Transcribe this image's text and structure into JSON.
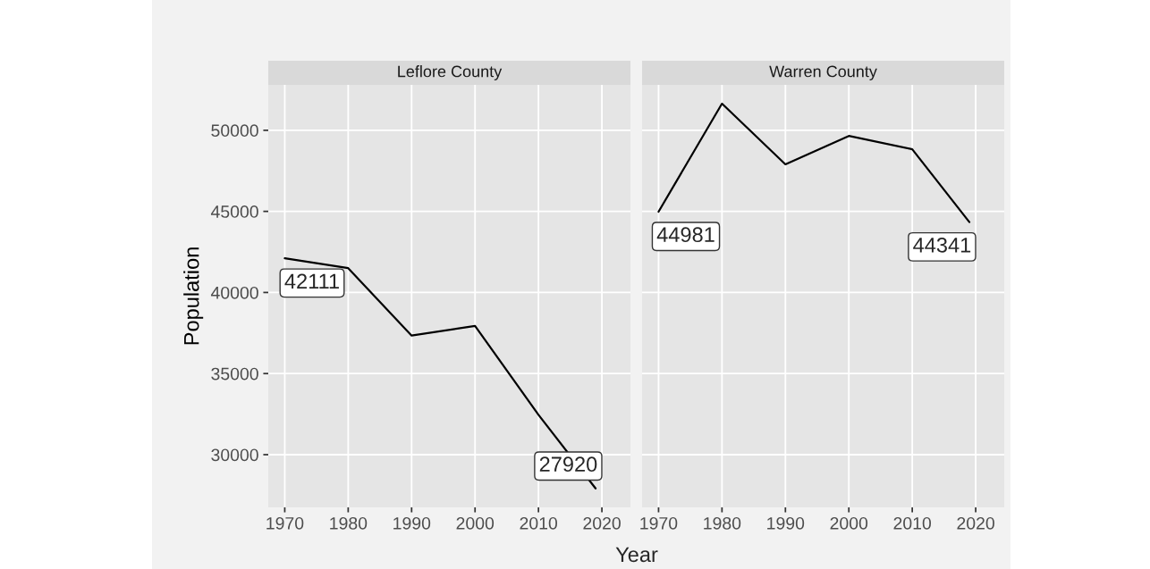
{
  "chart_data": [
    {
      "type": "line",
      "title": "Leflore County",
      "xlabel": "Year",
      "ylabel": "Population",
      "x": [
        1970,
        1980,
        1990,
        2000,
        2010,
        2019
      ],
      "series": [
        {
          "color": "#000000",
          "values": [
            42111,
            41500,
            37340,
            37940,
            32460,
            27920
          ],
          "value_labels": [
            "42111",
            null,
            null,
            null,
            null,
            "27920"
          ]
        }
      ],
      "xlim": [
        1967.4,
        2024.5
      ],
      "xticks": [
        1970,
        1980,
        1990,
        2000,
        2010,
        2020
      ],
      "ylim": [
        26750,
        52800
      ],
      "yticks": [
        30000,
        35000,
        40000,
        45000,
        50000
      ],
      "grid": true,
      "marker": "none"
    },
    {
      "type": "line",
      "title": "Warren County",
      "x": [
        1970,
        1980,
        1990,
        2000,
        2010,
        2019
      ],
      "series": [
        {
          "color": "#000000",
          "values": [
            44981,
            51640,
            47900,
            49650,
            48830,
            44341
          ],
          "value_labels": [
            "44981",
            null,
            null,
            null,
            null,
            "44341"
          ]
        }
      ],
      "xlim": [
        1967.4,
        2024.5
      ],
      "xticks": [
        1970,
        1980,
        1990,
        2000,
        2010,
        2020
      ],
      "ylim": [
        26750,
        52800
      ],
      "yticks": [
        30000,
        35000,
        40000,
        45000,
        50000
      ],
      "grid": true,
      "marker": "none",
      "tick_labels": "x"
    }
  ]
}
